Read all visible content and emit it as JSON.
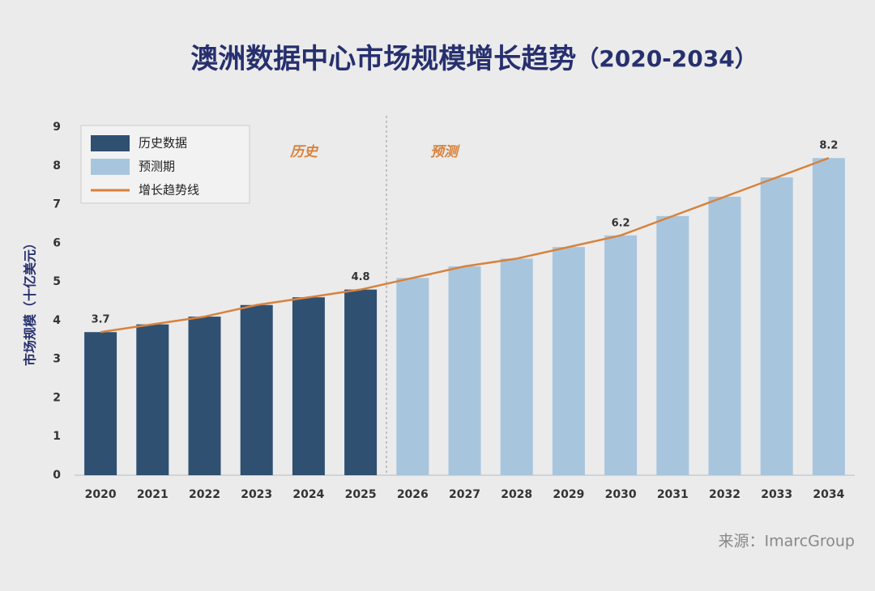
{
  "chart_data": {
    "type": "bar",
    "title": "澳洲数据中心市场规模增长趋势",
    "subtitle": "（2020-2034）",
    "y_label": "市场规模（十亿美元）",
    "source": "来源：ImarcGroup",
    "annotations": [
      "历史",
      "预测"
    ],
    "categories": [
      "2020",
      "2021",
      "2022",
      "2023",
      "2024",
      "2025",
      "2026",
      "2027",
      "2028",
      "2029",
      "2030",
      "2031",
      "2032",
      "2033",
      "2034"
    ],
    "series": [
      {
        "name": "历史数据",
        "color": "#2f5071",
        "values": [
          3.7,
          3.9,
          4.1,
          4.4,
          4.6,
          4.8,
          null,
          null,
          null,
          null,
          null,
          null,
          null,
          null,
          null
        ]
      },
      {
        "name": "预测期",
        "color": "#a8c5de",
        "values": [
          null,
          null,
          null,
          null,
          null,
          null,
          5.1,
          5.4,
          5.6,
          5.9,
          6.2,
          6.7,
          7.2,
          7.7,
          8.2
        ]
      },
      {
        "name": "增长趋势线",
        "type": "line",
        "color": "#d8823c",
        "values": [
          3.7,
          3.9,
          4.1,
          4.4,
          4.6,
          4.8,
          5.1,
          5.4,
          5.6,
          5.9,
          6.2,
          6.7,
          7.2,
          7.7,
          8.2
        ]
      }
    ],
    "value_labels": [
      "3.7",
      null,
      null,
      null,
      null,
      "4.8",
      null,
      null,
      null,
      null,
      "6.2",
      null,
      null,
      null,
      "8.2"
    ],
    "ylim": [
      0,
      9
    ],
    "yticks": [
      0,
      1,
      2,
      3,
      4,
      5,
      6,
      7,
      8,
      9
    ],
    "legend": "top-left"
  }
}
